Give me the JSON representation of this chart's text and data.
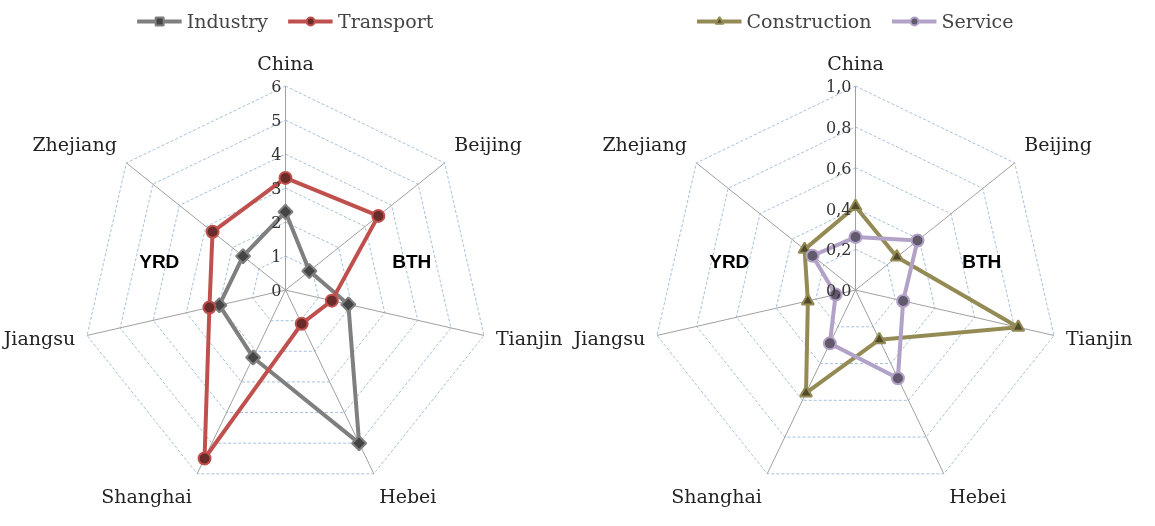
{
  "chart_data": [
    {
      "type": "radar",
      "categories": [
        "China",
        "Beijing",
        "Tianjin",
        "Hebei",
        "Shanghai",
        "Jiangsu",
        "Zhejiang"
      ],
      "series": [
        {
          "name": "Industry",
          "color": "#7f7f7f",
          "marker": "diamond",
          "values": [
            2.3,
            0.9,
            1.9,
            5.0,
            2.2,
            2.0,
            1.6
          ]
        },
        {
          "name": "Transport",
          "color": "#c0504d",
          "marker": "circle",
          "values": [
            3.3,
            3.5,
            1.4,
            1.1,
            5.5,
            2.3,
            2.75
          ]
        }
      ],
      "ylim": [
        0,
        6
      ],
      "yticks": [
        0,
        1,
        2,
        3,
        4,
        5,
        6
      ],
      "grid": true,
      "legend": "top",
      "annotations": [
        "BTH",
        "YRD"
      ]
    },
    {
      "type": "radar",
      "categories": [
        "China",
        "Beijing",
        "Tianjin",
        "Hebei",
        "Shanghai",
        "Jiangsu",
        "Zhejiang"
      ],
      "series": [
        {
          "name": "Construction",
          "color": "#948a54",
          "marker": "triangle",
          "values": [
            0.41,
            0.26,
            0.82,
            0.27,
            0.56,
            0.24,
            0.32
          ]
        },
        {
          "name": "Service",
          "color": "#b3a2c7",
          "marker": "circle",
          "values": [
            0.26,
            0.39,
            0.24,
            0.48,
            0.29,
            0.1,
            0.27
          ]
        }
      ],
      "ylim": [
        0,
        1.0
      ],
      "yticks": [
        {
          "value": 0,
          "label": "0,0"
        },
        {
          "value": 0.2,
          "label": "0,2"
        },
        {
          "value": 0.4,
          "label": "0,4"
        },
        {
          "value": 0.6,
          "label": "0,6"
        },
        {
          "value": 0.8,
          "label": "0,8"
        },
        {
          "value": 1.0,
          "label": "1,0"
        }
      ],
      "grid": true,
      "legend": "top",
      "annotations": [
        "BTH",
        "YRD"
      ]
    }
  ]
}
